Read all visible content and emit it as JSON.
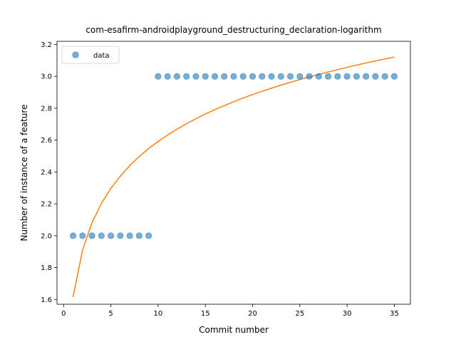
{
  "chart_data": {
    "type": "scatter",
    "title": "com-esafirm-androidplayground_destructuring_declaration-logarithm",
    "xlabel": "Commit number",
    "ylabel": "Number of instance of a feature",
    "xlim": [
      -0.7,
      36.7
    ],
    "ylim": [
      1.57,
      3.22
    ],
    "xticks": [
      0,
      5,
      10,
      15,
      20,
      25,
      30,
      35
    ],
    "yticks": [
      1.6,
      1.8,
      2.0,
      2.2,
      2.4,
      2.6,
      2.8,
      3.0,
      3.2
    ],
    "grid": false,
    "legend": {
      "position": "top-left",
      "entries": [
        "data"
      ]
    },
    "series": [
      {
        "name": "data",
        "kind": "scatter",
        "color": "#1f77b4",
        "x": [
          1,
          2,
          3,
          4,
          5,
          6,
          7,
          8,
          9,
          10,
          11,
          12,
          13,
          14,
          15,
          16,
          17,
          18,
          19,
          20,
          21,
          22,
          23,
          24,
          25,
          26,
          27,
          28,
          29,
          30,
          31,
          32,
          33,
          34,
          35
        ],
        "y": [
          2,
          2,
          2,
          2,
          2,
          2,
          2,
          2,
          2,
          3,
          3,
          3,
          3,
          3,
          3,
          3,
          3,
          3,
          3,
          3,
          3,
          3,
          3,
          3,
          3,
          3,
          3,
          3,
          3,
          3,
          3,
          3,
          3,
          3,
          3
        ]
      },
      {
        "kind": "line",
        "color": "#ff7f0e",
        "x": [
          1,
          2,
          3,
          4,
          5,
          6,
          7,
          8,
          9,
          10,
          11,
          12,
          13,
          14,
          15,
          16,
          17,
          18,
          19,
          20,
          21,
          22,
          23,
          24,
          25,
          26,
          27,
          28,
          29,
          30,
          31,
          32,
          33,
          34,
          35
        ],
        "y": [
          1.615,
          1.909,
          2.081,
          2.203,
          2.297,
          2.374,
          2.44,
          2.497,
          2.547,
          2.591,
          2.632,
          2.669,
          2.703,
          2.734,
          2.764,
          2.791,
          2.817,
          2.841,
          2.864,
          2.886,
          2.906,
          2.926,
          2.945,
          2.963,
          2.98,
          2.997,
          3.012,
          3.028,
          3.042,
          3.057,
          3.071,
          3.084,
          3.097,
          3.109,
          3.121
        ]
      }
    ]
  }
}
